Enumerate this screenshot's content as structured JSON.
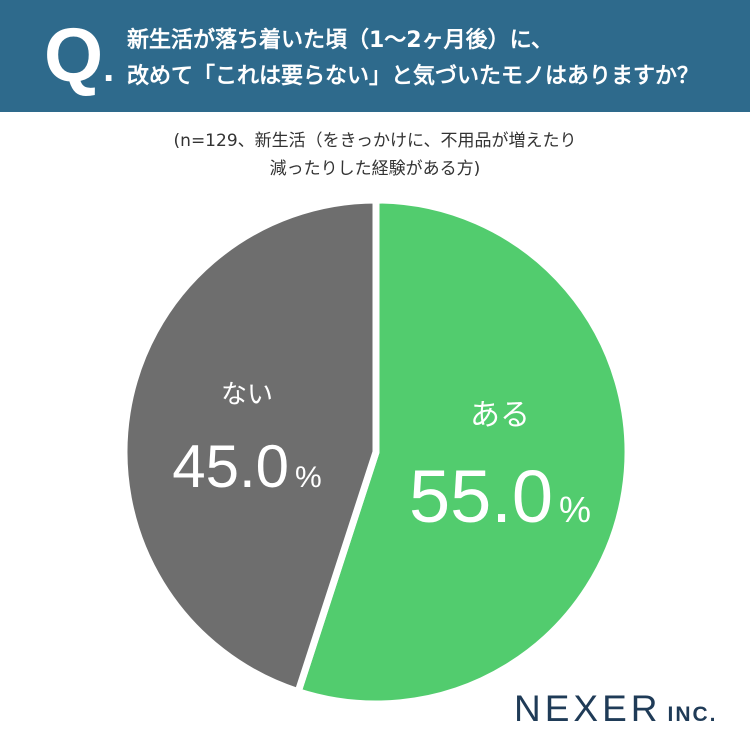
{
  "header": {
    "q_letter": "Q",
    "q_dot": ".",
    "line1": "新生活が落ち着いた頃（1〜2ヶ月後）に、",
    "line2": "改めて「これは要らない」と気づいたモノはありますか？"
  },
  "note": {
    "line1": "(n=129、新生活（をきっかけに、不用品が増えたり",
    "line2": "減ったりした経験がある方)"
  },
  "chart_data": {
    "type": "pie",
    "title": "新生活が落ち着いた頃（1〜2ヶ月後）に、改めて「これは要らない」と気づいたモノはありますか？",
    "n": 129,
    "start": "top (12 o'clock), clockwise",
    "slices": [
      {
        "label": "ある",
        "value": 55.0,
        "value_text": "55.0",
        "unit": "%",
        "color": "#52cc6e"
      },
      {
        "label": "ない",
        "value": 45.0,
        "value_text": "45.0",
        "unit": "%",
        "color": "#6e6e6e"
      }
    ],
    "label_color": "#ffffff"
  },
  "brand": {
    "main": "NEXER",
    "sub": "INC.",
    "color": "#1f3b57"
  },
  "colors": {
    "header_bg": "#2e6a8c",
    "background": "#ffffff"
  }
}
